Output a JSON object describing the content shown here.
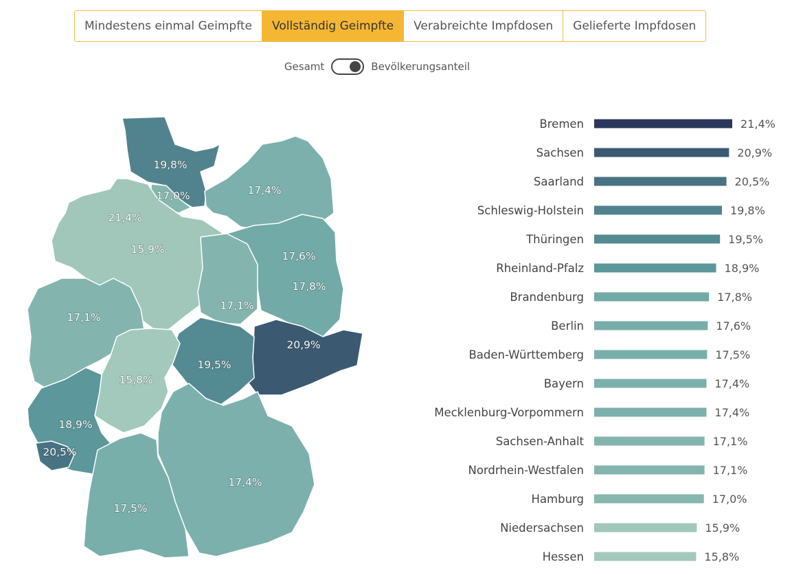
{
  "tabs": [
    {
      "label": "Mindestens einmal Geimpfte",
      "active": false
    },
    {
      "label": "Vollständig Geimpfte",
      "active": true
    },
    {
      "label": "Verabreichte Impfdosen",
      "active": false
    },
    {
      "label": "Gelieferte Impfdosen",
      "active": false
    }
  ],
  "toggle": {
    "left_label": "Gesamt",
    "right_label": "Bevölkerungsanteil"
  },
  "colors": {
    "tab_border": "#f0b93a",
    "tab_active": "#f5b733",
    "scale_high": "#1c1f4a",
    "scale_mid": "#2e6a80",
    "scale_low": "#a2c9bb"
  },
  "chart_data": {
    "type": "bar",
    "orientation": "horizontal",
    "unit": "%",
    "title": "",
    "categories": [
      "Bremen",
      "Sachsen",
      "Saarland",
      "Schleswig-Holstein",
      "Thüringen",
      "Rheinland-Pfalz",
      "Brandenburg",
      "Berlin",
      "Baden-Württemberg",
      "Bayern",
      "Mecklenburg-Vorpommern",
      "Sachsen-Anhalt",
      "Nordrhein-Westfalen",
      "Hamburg",
      "Niedersachsen",
      "Hessen"
    ],
    "values": [
      21.4,
      20.9,
      20.5,
      19.8,
      19.5,
      18.9,
      17.8,
      17.6,
      17.5,
      17.4,
      17.4,
      17.1,
      17.1,
      17.0,
      15.9,
      15.8
    ],
    "value_labels": [
      "21,4%",
      "20,9%",
      "20,5%",
      "19,8%",
      "19,5%",
      "18,9%",
      "17,8%",
      "17,6%",
      "17,5%",
      "17,4%",
      "17,4%",
      "17,1%",
      "17,1%",
      "17,0%",
      "15,9%",
      "15,8%"
    ],
    "xlim": [
      0,
      21.4
    ]
  },
  "map": {
    "type": "choropleth",
    "region": "Deutschland",
    "states": [
      {
        "name": "Schleswig-Holstein",
        "value": 19.8,
        "label": "19,8%"
      },
      {
        "name": "Mecklenburg-Vorpommern",
        "value": 17.4,
        "label": "17,4%"
      },
      {
        "name": "Hamburg",
        "value": 17.0,
        "label": "17,0%"
      },
      {
        "name": "Bremen",
        "value": 21.4,
        "label": "21,4%"
      },
      {
        "name": "Niedersachsen",
        "value": 15.9,
        "label": "15,9%"
      },
      {
        "name": "Berlin",
        "value": 17.6,
        "label": "17,6%"
      },
      {
        "name": "Brandenburg",
        "value": 17.8,
        "label": "17,8%"
      },
      {
        "name": "Sachsen-Anhalt",
        "value": 17.1,
        "label": "17,1%"
      },
      {
        "name": "Nordrhein-Westfalen",
        "value": 17.1,
        "label": "17,1%"
      },
      {
        "name": "Sachsen",
        "value": 20.9,
        "label": "20,9%"
      },
      {
        "name": "Thüringen",
        "value": 19.5,
        "label": "19,5%"
      },
      {
        "name": "Hessen",
        "value": 15.8,
        "label": "15,8%"
      },
      {
        "name": "Rheinland-Pfalz",
        "value": 18.9,
        "label": "18,9%"
      },
      {
        "name": "Saarland",
        "value": 20.5,
        "label": "20,5%"
      },
      {
        "name": "Bayern",
        "value": 17.4,
        "label": "17,4%"
      },
      {
        "name": "Baden-Württemberg",
        "value": 17.5,
        "label": "17,5%"
      }
    ]
  }
}
